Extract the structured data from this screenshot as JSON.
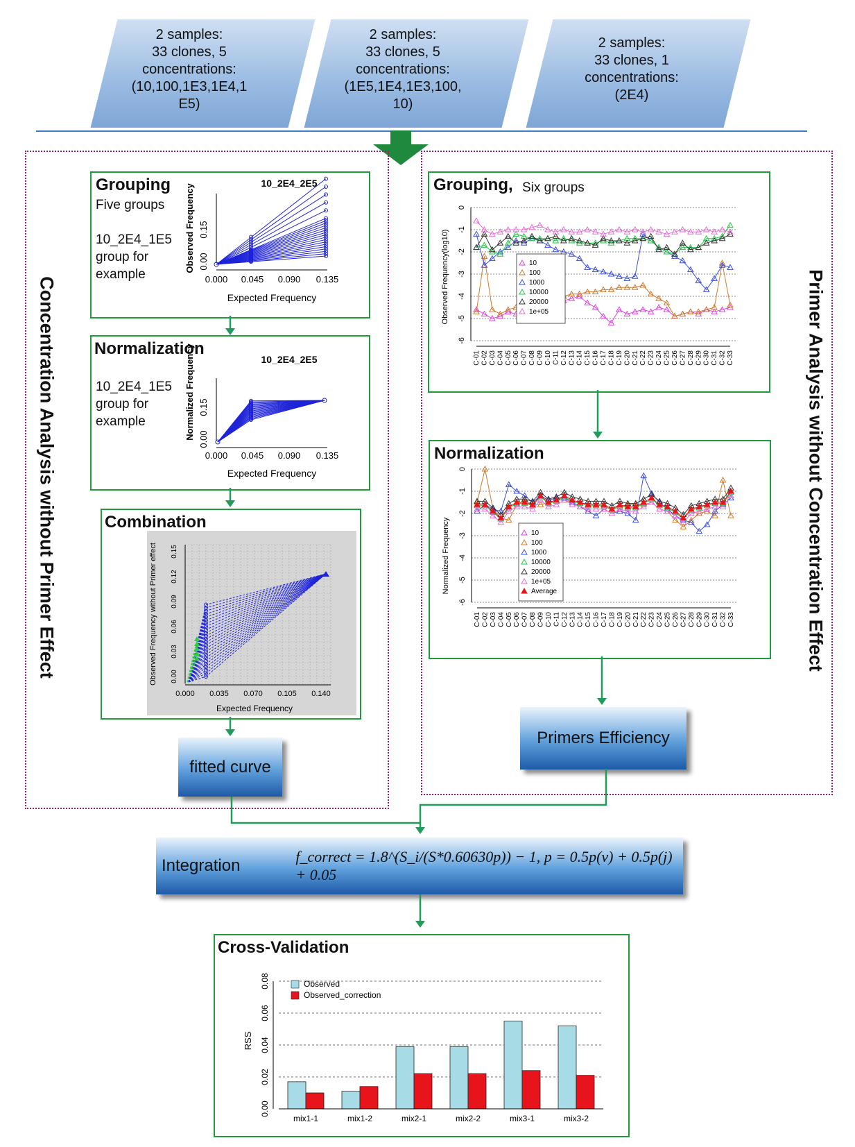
{
  "inputs": [
    {
      "line1": "2 samples:",
      "line2": "33 clones, 5",
      "line3": "concentrations:",
      "line4": "(10,100,1E3,1E4,1",
      "line5": "E5)"
    },
    {
      "line1": "2 samples:",
      "line2": "33 clones, 5",
      "line3": "concentrations:",
      "line4": "(1E5,1E4,1E3,100,",
      "line5": "10)"
    },
    {
      "line1": "2 samples:",
      "line2": "33 clones, 1",
      "line3": "concentrations:",
      "line4": "(2E4)",
      "line5": ""
    }
  ],
  "left_section": {
    "vertical_title": "Concentration Analysis without Primer Effect",
    "grouping": {
      "title": "Grouping",
      "subtitle": "Five groups",
      "note": "10_2E4_1E5\n group for\n example",
      "plot": {
        "title": "10_2E4_2E5",
        "xlabel": "Expected Frequency",
        "ylabel": "Observed Frequency",
        "xticks": [
          "0.000",
          "0.045",
          "0.090",
          "0.135"
        ],
        "yticks": [
          "0.00",
          "0.15"
        ]
      }
    },
    "normalization": {
      "title": "Normalization",
      "note": "10_2E4_1E5\n group for\n example",
      "plot": {
        "title": "10_2E4_2E5",
        "xlabel": "Expected Frequency",
        "ylabel": "Normalized Frequency",
        "xticks": [
          "0.000",
          "0.045",
          "0.090",
          "0.135"
        ],
        "yticks": [
          "0.00",
          "0.15"
        ]
      }
    },
    "combination": {
      "title": "Combination",
      "plot": {
        "xlabel": "Expected Frequency",
        "ylabel": "Observed Frequency without Primer effect",
        "xticks": [
          "0.000",
          "0.035",
          "0.070",
          "0.105",
          "0.140"
        ],
        "yticks": [
          "0.00",
          "0.03",
          "0.06",
          "0.09",
          "0.12",
          "0.15"
        ]
      }
    },
    "fitted": "fitted curve"
  },
  "right_section": {
    "vertical_title": "Primer Analysis without Concentration Effect",
    "grouping": {
      "title": "Grouping,",
      "subtitle": "Six groups",
      "ylabel": "Observed Frequency(log10)",
      "legend": [
        "10",
        "100",
        "1000",
        "10000",
        "20000",
        "1e+05"
      ]
    },
    "normalization": {
      "title": "Normalization",
      "ylabel": "Normalized Frequency",
      "legend": [
        "10",
        "100",
        "1000",
        "10000",
        "20000",
        "1e+05",
        "Average"
      ]
    },
    "yticks": [
      "0",
      "-1",
      "-2",
      "-3",
      "-4",
      "-5",
      "-6"
    ],
    "clones": [
      "C-01",
      "C-02",
      "C-03",
      "C-04",
      "C-05",
      "C-06",
      "C-07",
      "C-08",
      "C-09",
      "C-10",
      "C-11",
      "C-12",
      "C-13",
      "C-14",
      "C-15",
      "C-16",
      "C-17",
      "C-18",
      "C-19",
      "C-20",
      "C-21",
      "C-22",
      "C-23",
      "C-24",
      "C-25",
      "C-26",
      "C-27",
      "C-28",
      "C-29",
      "C-30",
      "C-31",
      "C-32",
      "C-33"
    ],
    "primers": "Primers Efficiency"
  },
  "integration": {
    "label": "Integration",
    "formula": "f_correct = 1.8^(S_i/(S*0.60630p)) − 1, p = 0.5p(v) + 0.5p(j) + 0.05"
  },
  "cross_validation": {
    "title": "Cross-Validation",
    "chart_data": {
      "type": "bar",
      "categories": [
        "mix1-1",
        "mix1-2",
        "mix2-1",
        "mix2-2",
        "mix3-1",
        "mix3-2"
      ],
      "series": [
        {
          "name": "Observed",
          "values": [
            0.017,
            0.011,
            0.039,
            0.039,
            0.055,
            0.052
          ]
        },
        {
          "name": "Observed_correction",
          "values": [
            0.01,
            0.014,
            0.022,
            0.022,
            0.024,
            0.021
          ]
        }
      ],
      "ylabel": "RSS",
      "ylim": [
        0,
        0.08
      ],
      "yticks": [
        "0.00",
        "0.02",
        "0.04",
        "0.06",
        "0.08"
      ],
      "legend": "top-left",
      "grid": true
    }
  },
  "colors": {
    "panel_border": "#1f9b3c",
    "dotted_border": "#9a1b6a",
    "observed": "#a7dbe6",
    "correction": "#e8141b",
    "plot_blue": "#1e23d8"
  }
}
